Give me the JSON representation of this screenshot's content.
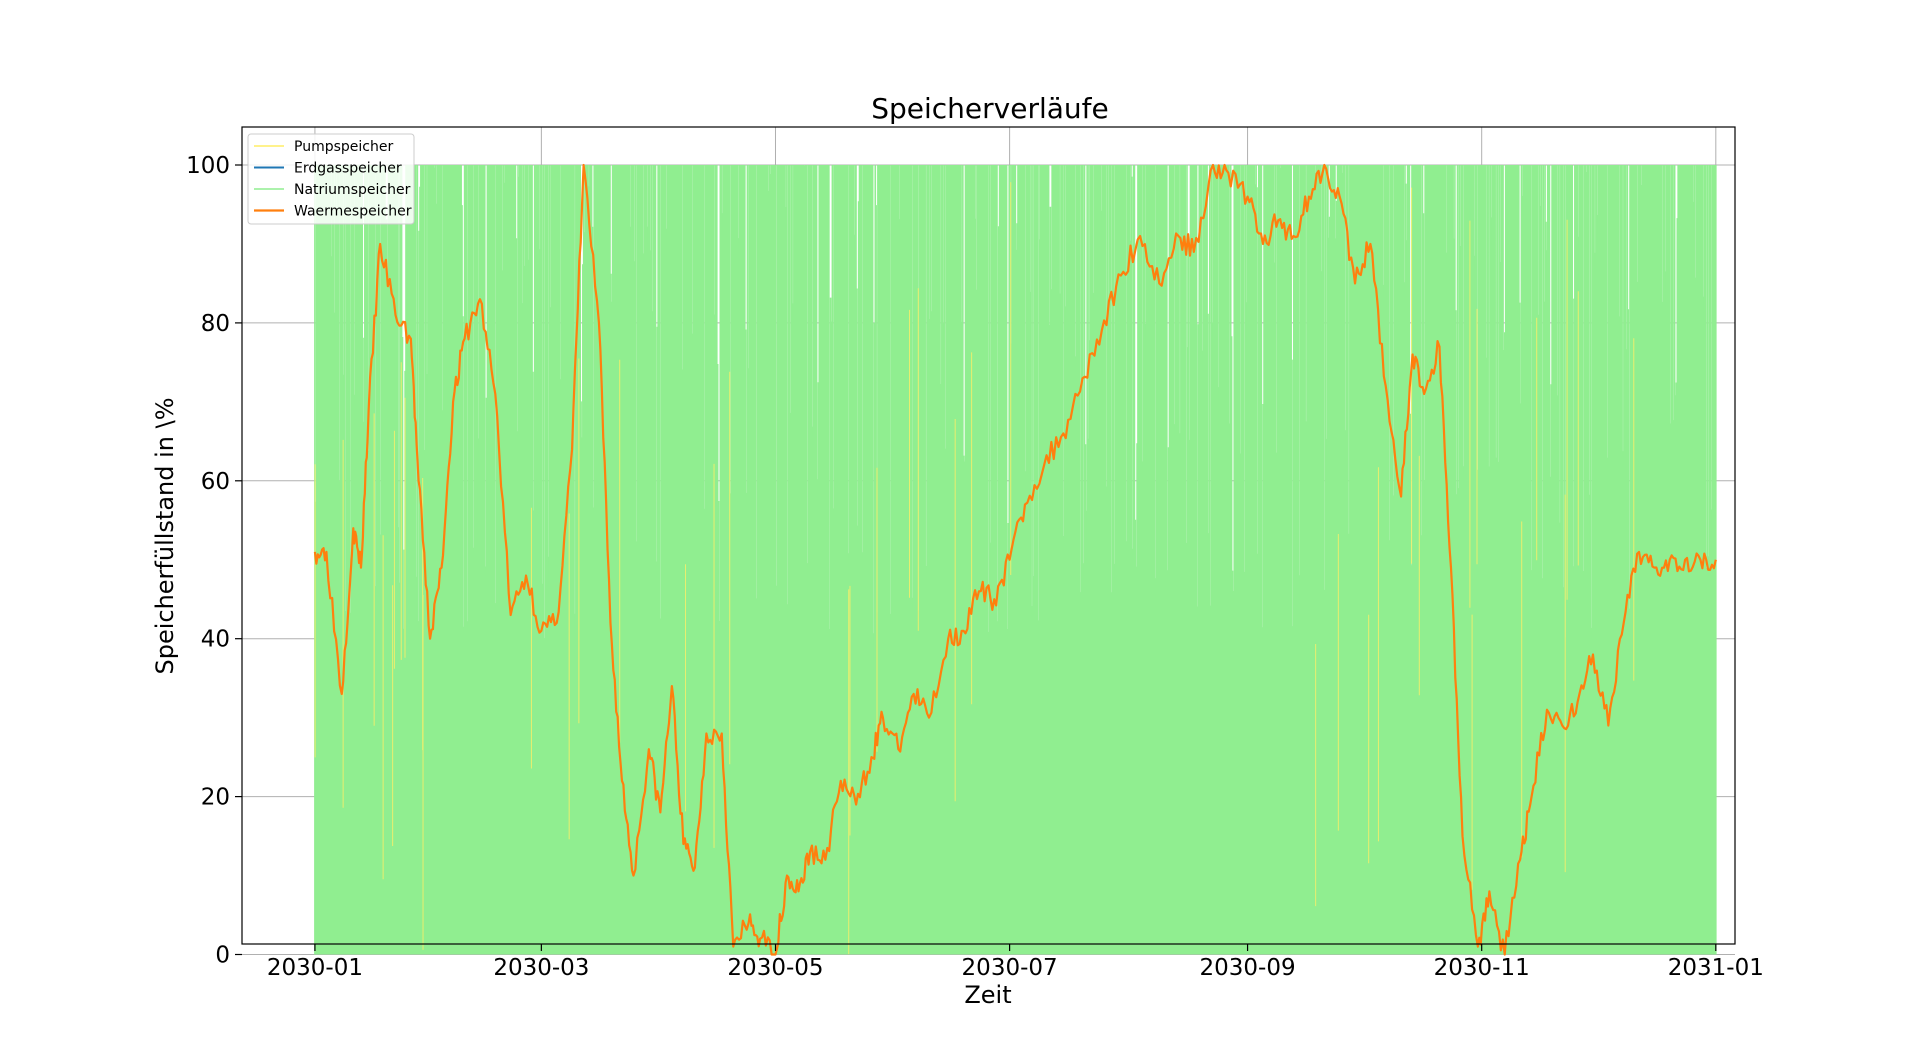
{
  "chart_data": {
    "type": "line",
    "title": "Speicherverläufe",
    "xlabel": "Zeit",
    "ylabel": "Speicherfüllstand in \\%",
    "ylim": [
      0,
      100
    ],
    "yticks": [
      0,
      20,
      40,
      60,
      80,
      100
    ],
    "xlim": [
      "2029-12-13",
      "2031-01-06"
    ],
    "xticks": [
      "2030-01",
      "2030-03",
      "2030-05",
      "2030-07",
      "2030-09",
      "2030-11",
      "2031-01"
    ],
    "grid": true,
    "legend_position": "top-left",
    "series": [
      {
        "name": "Pumpspeicher",
        "color": "#ffee66",
        "style": "oscillating between 0 and 100, mostly hidden behind Natriumspeicher",
        "x": [
          "2030-01-01",
          "2031-01-01"
        ],
        "y": [
          0,
          100
        ]
      },
      {
        "name": "Erdgasspeicher",
        "color": "#1f77b4",
        "style": "not visible (hidden)",
        "x": [],
        "y": []
      },
      {
        "name": "Natriumspeicher",
        "color": "#90ee90",
        "style": "rapid daily cycling between 0 and 100 over the whole year",
        "x": [
          "2030-01-01",
          "2031-01-01"
        ],
        "y": [
          0,
          100
        ]
      },
      {
        "name": "Waermespeicher",
        "color": "#ff7f0e",
        "x": [
          "2030-01-01",
          "2030-01-04",
          "2030-01-08",
          "2030-01-11",
          "2030-01-13",
          "2030-01-15",
          "2030-01-18",
          "2030-01-22",
          "2030-01-26",
          "2030-01-28",
          "2030-01-31",
          "2030-02-03",
          "2030-02-06",
          "2030-02-09",
          "2030-02-13",
          "2030-02-17",
          "2030-02-21",
          "2030-02-25",
          "2030-03-01",
          "2030-03-05",
          "2030-03-09",
          "2030-03-12",
          "2030-03-16",
          "2030-03-19",
          "2030-03-22",
          "2030-03-25",
          "2030-03-29",
          "2030-04-01",
          "2030-04-04",
          "2030-04-07",
          "2030-04-10",
          "2030-04-13",
          "2030-04-17",
          "2030-04-20",
          "2030-04-24",
          "2030-04-27",
          "2030-05-01",
          "2030-05-04",
          "2030-05-07",
          "2030-05-10",
          "2030-05-14",
          "2030-05-18",
          "2030-05-22",
          "2030-05-26",
          "2030-05-29",
          "2030-06-02",
          "2030-06-06",
          "2030-06-10",
          "2030-06-15",
          "2030-06-19",
          "2030-06-23",
          "2030-06-27",
          "2030-07-01",
          "2030-07-05",
          "2030-07-10",
          "2030-07-15",
          "2030-07-20",
          "2030-07-25",
          "2030-07-30",
          "2030-08-04",
          "2030-08-09",
          "2030-08-14",
          "2030-08-18",
          "2030-08-23",
          "2030-08-27",
          "2030-09-01",
          "2030-09-05",
          "2030-09-09",
          "2030-09-13",
          "2030-09-17",
          "2030-09-21",
          "2030-09-25",
          "2030-09-29",
          "2030-10-03",
          "2030-10-07",
          "2030-10-11",
          "2030-10-14",
          "2030-10-17",
          "2030-10-21",
          "2030-10-24",
          "2030-10-27",
          "2030-10-31",
          "2030-11-03",
          "2030-11-07",
          "2030-11-11",
          "2030-11-14",
          "2030-11-18",
          "2030-11-22",
          "2030-11-26",
          "2030-11-30",
          "2030-12-04",
          "2030-12-08",
          "2030-12-12",
          "2030-12-16",
          "2030-12-20",
          "2030-12-24",
          "2030-12-28",
          "2031-01-01"
        ],
        "y": [
          51,
          51,
          33,
          54,
          49,
          69,
          90,
          81,
          78,
          60,
          40,
          49,
          70,
          78,
          83,
          71,
          43,
          48,
          41,
          42,
          64,
          100,
          80,
          42,
          22,
          10,
          26,
          18,
          34,
          14,
          11,
          28,
          28,
          1,
          4,
          2,
          0,
          10,
          8,
          13,
          12,
          22,
          19,
          25,
          30,
          26,
          33,
          30,
          40,
          41,
          46,
          45,
          50,
          57,
          62,
          66,
          73,
          79,
          86,
          91,
          85,
          91,
          89,
          100,
          99,
          96,
          90,
          93,
          91,
          96,
          100,
          96,
          85,
          90,
          72,
          58,
          76,
          71,
          77,
          49,
          15,
          1,
          8,
          0,
          12,
          20,
          31,
          29,
          32,
          38,
          29,
          42,
          51,
          49,
          50,
          50,
          50,
          50
        ]
      }
    ]
  }
}
